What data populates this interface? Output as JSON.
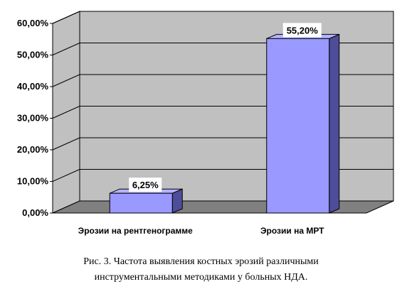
{
  "chart_data": {
    "type": "bar",
    "categories": [
      "Эрозии на рентгенограмме",
      "Эрозии на МРТ"
    ],
    "values": [
      6.25,
      55.2
    ],
    "data_labels": [
      "6,25%",
      "55,20%"
    ],
    "y_ticks": [
      "0,00%",
      "10,00%",
      "20,00%",
      "30,00%",
      "40,00%",
      "50,00%",
      "60,00%"
    ],
    "ylim": [
      0,
      60
    ],
    "grid": true,
    "style": "3d",
    "colors": {
      "bar_front": "#9999ff",
      "bar_side": "#4d4d99",
      "bar_top": "#b3b3ff",
      "wall": "#c0c0c0",
      "floor": "#808080",
      "grid": "#000000"
    }
  },
  "caption": {
    "line1": "Рис. 3. Частота выявления костных эрозий различными",
    "line2": "инструментальными методиками у больных НДА."
  }
}
